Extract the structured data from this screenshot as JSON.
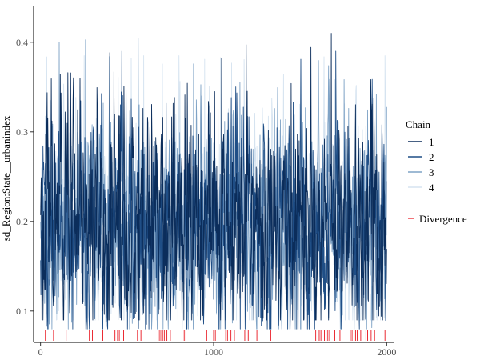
{
  "chart_data": {
    "type": "line",
    "title": "",
    "xlabel": "",
    "ylabel": "sd_Region:State__urbanindex",
    "xlim": [
      -40,
      2040
    ],
    "ylim": [
      0.065,
      0.44
    ],
    "x_ticks": [
      0,
      1000,
      2000
    ],
    "x_tick_labels": [
      "0",
      "1000",
      "2000"
    ],
    "y_ticks": [
      0.1,
      0.2,
      0.3,
      0.4
    ],
    "y_tick_labels": [
      "0.1",
      "0.2",
      "0.3",
      "0.4"
    ],
    "n_iterations": 2000,
    "series": [
      {
        "name": "1",
        "color": "#0b2d5b",
        "center": 0.195,
        "spread": 0.055,
        "max": 0.41,
        "min": 0.09
      },
      {
        "name": "2",
        "color": "#1f4e86",
        "center": 0.195,
        "spread": 0.055,
        "max": 0.39,
        "min": 0.08
      },
      {
        "name": "3",
        "color": "#7fa3c6",
        "center": 0.195,
        "spread": 0.055,
        "max": 0.415,
        "min": 0.08
      },
      {
        "name": "4",
        "color": "#d5e3f0",
        "center": 0.195,
        "spread": 0.055,
        "max": 0.385,
        "min": 0.09
      }
    ],
    "legend": {
      "title": "Chain",
      "entries": [
        "1",
        "2",
        "3",
        "4"
      ],
      "divergence_label": "Divergence",
      "divergence_color": "#e8141e",
      "position": "right"
    },
    "divergences": [
      28,
      75,
      148,
      282,
      300,
      355,
      360,
      430,
      445,
      455,
      480,
      560,
      580,
      680,
      690,
      700,
      705,
      715,
      730,
      750,
      830,
      840,
      960,
      1000,
      1010,
      1070,
      1080,
      1100,
      1120,
      1180,
      1200,
      1250,
      1330,
      1590,
      1610,
      1620,
      1640,
      1650,
      1660,
      1670,
      1700,
      1730,
      1790,
      1800,
      1820,
      1830,
      1850,
      1880,
      1890,
      1910,
      1930,
      1990
    ]
  }
}
